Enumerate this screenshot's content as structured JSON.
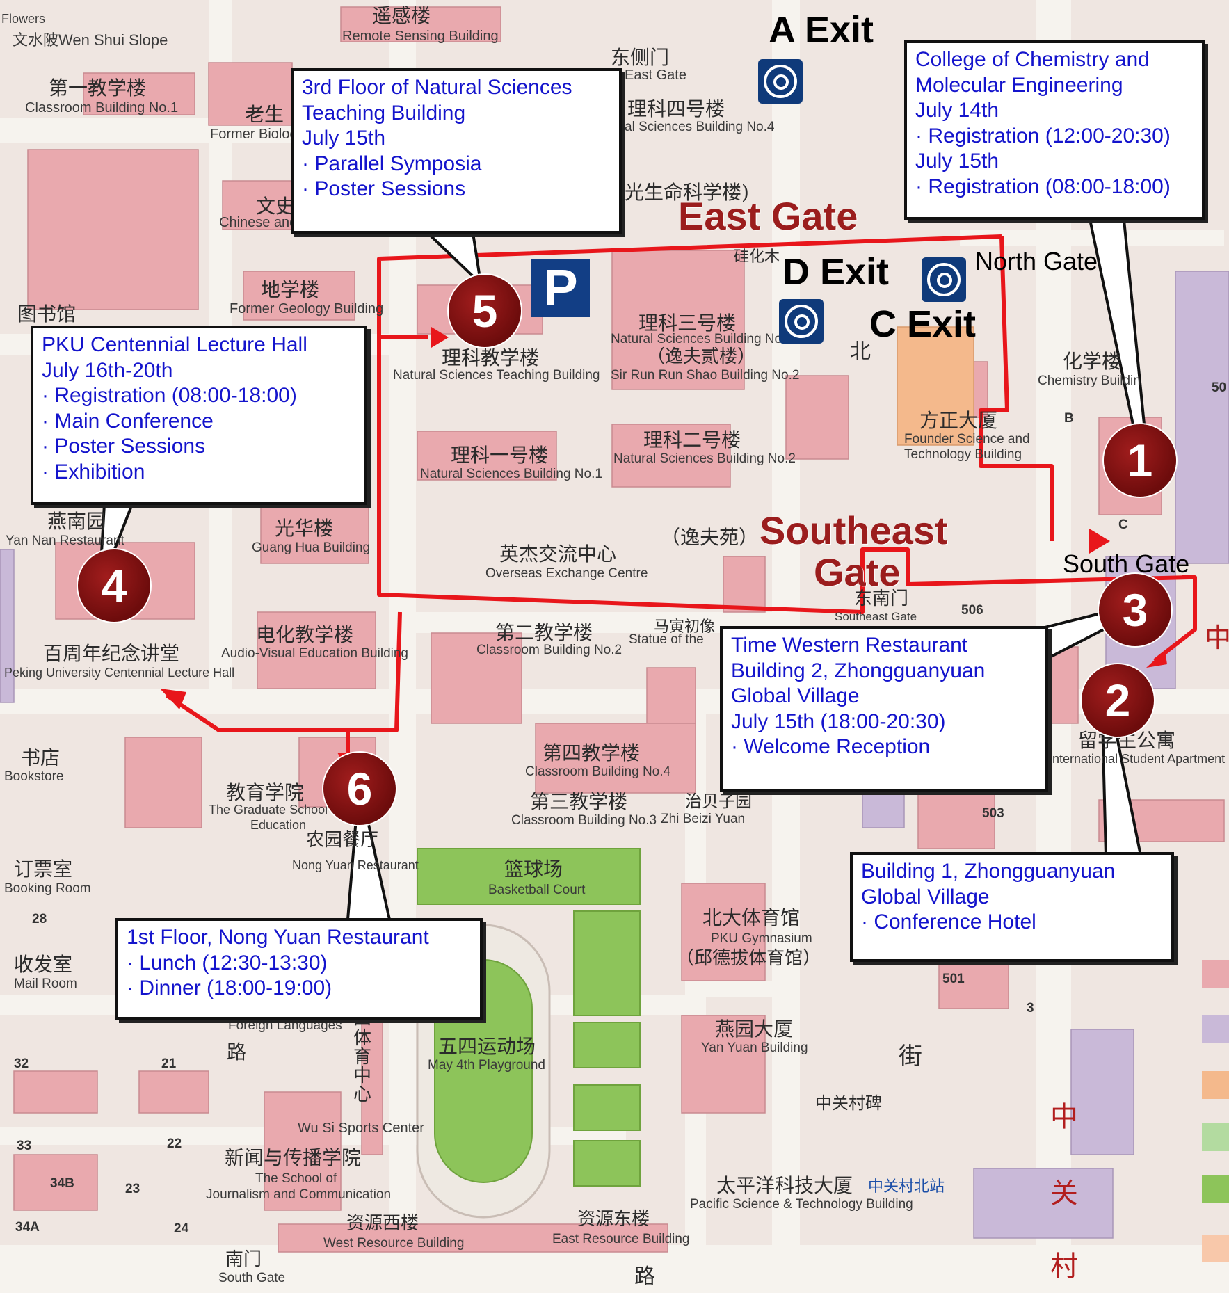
{
  "map": {
    "exits": {
      "a_exit": "A Exit",
      "d_exit": "D Exit",
      "c_exit": "C Exit"
    },
    "gates": {
      "east_gate": "East Gate",
      "southeast_gate_line1": "Southeast",
      "southeast_gate_line2": "Gate",
      "north_gate": "North Gate",
      "south_gate": "South Gate"
    },
    "parking_symbol": "P",
    "markers": [
      "1",
      "2",
      "3",
      "4",
      "5",
      "6"
    ],
    "info_boxes": {
      "box1": [
        "College of Chemistry and",
        "Molecular Engineering",
        "July 14th",
        "· Registration (12:00-20:30)",
        "July 15th",
        "· Registration (08:00-18:00)"
      ],
      "box2": [
        "Building 1, Zhongguanyuan",
        "Global Village",
        "· Conference Hotel"
      ],
      "box3": [
        "Time Western Restaurant",
        "Building 2, Zhongguanyuan",
        "Global Village",
        "July 15th (18:00-20:30)",
        "· Welcome Reception"
      ],
      "box4": [
        "PKU Centennial Lecture Hall",
        "July 16th-20th",
        "· Registration (08:00-18:00)",
        "· Main Conference",
        "· Poster Sessions",
        "· Exhibition"
      ],
      "box5": [
        "3rd Floor of Natural Sciences",
        "Teaching Building",
        "July 15th",
        "· Parallel Symposia",
        "· Poster Sessions"
      ],
      "box6": [
        "1st Floor, Nong Yuan Restaurant",
        "· Lunch (12:30-13:30)",
        "· Dinner (18:00-19:00)"
      ]
    },
    "base_labels": {
      "remote_zh": "遥感楼",
      "remote_en": "Remote Sensing Building",
      "flowers": "Flowers",
      "wenshui": "文水陂Wen Shui Slope",
      "classroom1_zh": "第一教学楼",
      "classroom1_en": "Classroom Building No.1",
      "oldbio_zh": "老生",
      "oldbio_en": "Former Biolog",
      "east_side_gate_zh": "东侧门",
      "east_side_gate_en": "East Gate",
      "ns4_zh": "理科四号楼",
      "ns4_en": "al Sciences Building No.4",
      "life_zh": "光生命科学楼)",
      "chinese_zh": "文史",
      "chinese_en": "Chinese and",
      "geology_zh": "地学楼",
      "geology_en": "Former Geology Building",
      "library_zh": "图书馆",
      "silicified": "硅化木",
      "nsteach_zh": "理科教学楼",
      "nsteach_en": "Natural Sciences Teaching Building",
      "ns3_zh": "理科三号楼",
      "ns3_en": "Natural Sciences Building No.3",
      "yifu2_zh": "（逸夫贰楼）",
      "yifu2_en": "Sir Run Run Shao Building No.2",
      "bei": "北",
      "chem_zh": "化学楼",
      "chem_en": "Chemistry Buildin",
      "founder_zh": "方正大厦",
      "founder_en1": "Founder Science and",
      "founder_en2": "Technology Building",
      "ns1_zh": "理科一号楼",
      "ns1_en": "Natural Sciences Building No.1",
      "ns2_zh": "理科二号楼",
      "ns2_en": "Natural Sciences Building No.2",
      "yanan_zh": "燕南园",
      "yanan_en": "Yan Nan Restaurant",
      "guanghua_zh": "光华楼",
      "guanghua_en": "Guang Hua Building",
      "overseas_zh": "英杰交流中心",
      "overseas_en": "Overseas Exchange Centre",
      "yifuyuan_zh": "（逸夫苑）",
      "southeast_gate_zh": "东南门",
      "southeast_gate_en": "Southeast Gate",
      "n506": "506",
      "centennial_zh": "百周年纪念讲堂",
      "centennial_en": "Peking University Centennial Lecture Hall",
      "av_zh": "电化教学楼",
      "av_en": "Audio-Visual Education Building",
      "classroom2_zh": "第二教学楼",
      "classroom2_en": "Classroom Building No.2",
      "statue_zh": "马寅初像",
      "statue_en": "Statue of the",
      "bookstore_zh": "书店",
      "bookstore_en": "Bookstore",
      "graduate_zh": "教育学院",
      "graduate_en1": "The Graduate School of",
      "graduate_en2": "Education",
      "classroom4_zh": "第四教学楼",
      "classroom4_en": "Classroom Building No.4",
      "classroom3_zh": "第三教学楼",
      "classroom3_en": "Classroom Building No.3",
      "zhipei_zh": "治贝子园",
      "zhipei_en": "Zhi Beizi Yuan",
      "intl_zh": "留学生公寓",
      "intl_en": "International Student Apartment",
      "n503": "503",
      "booking_zh": "订票室",
      "booking_en": "Booking Room",
      "nongyuan_zh": "农园餐厅",
      "nongyuan_en": "Nong Yuan Restaurant",
      "basketball_zh": "篮球场",
      "basketball_en": "Basketball Court",
      "gym_zh": "北大体育馆",
      "gym_en": "PKU Gymnasium",
      "gym_zh2": "（邱德拔体育馆）",
      "mail_zh": "收发室",
      "mail_en": "Mail Room",
      "n28": "28",
      "n32": "32",
      "n21": "21",
      "n33": "33",
      "n22": "22",
      "n34b": "34B",
      "n23": "23",
      "n34a": "34A",
      "n24": "24",
      "n501": "501",
      "n3": "3",
      "n50": "50",
      "foreign": "Foreign Languages",
      "lu": "路",
      "playground_zh": "五四运动场",
      "playground_en": "May 4th Playground",
      "wusi_zh": "五四体育中心",
      "wusi_en": "Wu Si Sports Center",
      "yanyuan_zh": "燕园大厦",
      "yanyuan_en": "Yan Yuan Building",
      "zgc_stele": "中关村碑",
      "jie": "街",
      "journal_zh": "新闻与传播学院",
      "journal_en1": "The School of",
      "journal_en2": "Journalism and Communication",
      "pacific_zh": "太平洋科技大厦",
      "pacific_en": "Pacific Science & Technology Building",
      "zgc_north": "中关村北站",
      "westres_zh": "资源西楼",
      "westres_en": "West Resource Building",
      "eastres_zh": "资源东楼",
      "eastres_en": "East Resource Building",
      "southgate_zh": "南门",
      "southgate_en": "South Gate",
      "zhong": "中",
      "guan": "关",
      "cun": "村",
      "b_letter": "B",
      "c_letter": "C"
    }
  }
}
